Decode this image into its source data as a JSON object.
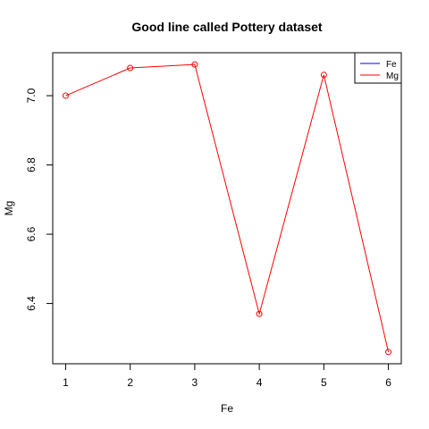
{
  "chart_data": {
    "type": "line",
    "title": "Good line called Pottery dataset",
    "xlabel": "Fe",
    "ylabel": "Mg",
    "x": [
      1,
      2,
      3,
      4,
      5,
      6
    ],
    "xlim": [
      0.8,
      6.2
    ],
    "ylim": [
      6.226,
      7.124
    ],
    "x_ticks": [
      "1",
      "2",
      "3",
      "4",
      "5",
      "6"
    ],
    "y_ticks": [
      "6.4",
      "6.6",
      "6.8",
      "7.0"
    ],
    "y_tick_values": [
      6.4,
      6.6,
      6.8,
      7.0
    ],
    "series": [
      {
        "name": "Mg",
        "color": "#ff0000",
        "values": [
          7.0,
          7.08,
          7.09,
          6.37,
          7.06,
          6.26
        ],
        "marker": "open-circle"
      }
    ],
    "legend": {
      "position": "top-right",
      "entries": [
        {
          "label": "Fe",
          "color": "#0000ff"
        },
        {
          "label": "Mg",
          "color": "#ff0000"
        }
      ]
    },
    "grid": false
  }
}
